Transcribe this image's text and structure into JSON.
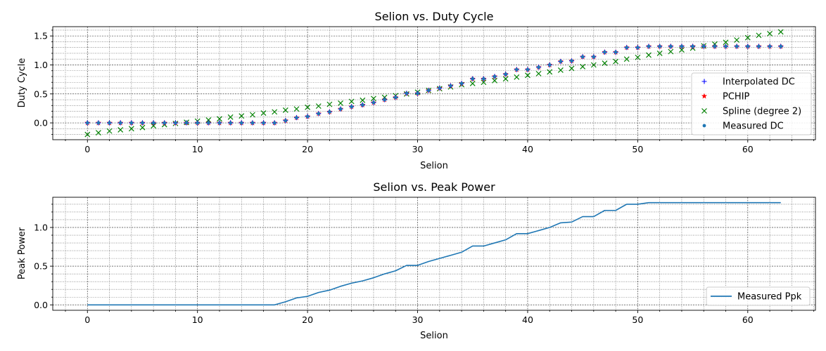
{
  "chart_data": [
    {
      "type": "scatter",
      "title": "Selion vs. Duty Cycle",
      "xlabel": "Selion",
      "ylabel": "Duty Cycle",
      "xlim": [
        -3.15,
        66.15
      ],
      "ylim": [
        -0.29,
        1.66
      ],
      "xticks": [
        0,
        10,
        20,
        30,
        40,
        50,
        60
      ],
      "xtick_labels": [
        "0",
        "10",
        "20",
        "30",
        "40",
        "50",
        "60"
      ],
      "yticks": [
        0.0,
        0.5,
        1.0,
        1.5
      ],
      "ytick_labels": [
        "0.0",
        "0.5",
        "1.0",
        "1.5"
      ],
      "grid": true,
      "minor_grid": true,
      "legend_position": "right",
      "x": [
        0,
        1,
        2,
        3,
        4,
        5,
        6,
        7,
        8,
        9,
        10,
        11,
        12,
        13,
        14,
        15,
        16,
        17,
        18,
        19,
        20,
        21,
        22,
        23,
        24,
        25,
        26,
        27,
        28,
        29,
        30,
        31,
        32,
        33,
        34,
        35,
        36,
        37,
        38,
        39,
        40,
        41,
        42,
        43,
        44,
        45,
        46,
        47,
        48,
        49,
        50,
        51,
        52,
        53,
        54,
        55,
        56,
        57,
        58,
        59,
        60,
        61,
        62,
        63
      ],
      "series": [
        {
          "name": "Interpolated DC",
          "marker": "plus",
          "color": "#0000ff",
          "values": [
            0,
            0,
            0,
            0,
            0,
            0,
            0,
            0,
            0,
            0,
            0,
            0,
            0,
            0,
            0,
            0,
            0,
            0,
            0.04,
            0.09,
            0.11,
            0.16,
            0.19,
            0.24,
            0.28,
            0.31,
            0.35,
            0.4,
            0.44,
            0.51,
            0.51,
            0.56,
            0.6,
            0.64,
            0.68,
            0.76,
            0.76,
            0.8,
            0.84,
            0.92,
            0.92,
            0.96,
            1.0,
            1.06,
            1.07,
            1.14,
            1.14,
            1.22,
            1.22,
            1.3,
            1.3,
            1.32,
            1.32,
            1.32,
            1.32,
            1.32,
            1.32,
            1.32,
            1.32,
            1.32,
            1.32,
            1.32,
            1.32,
            1.32
          ]
        },
        {
          "name": "PCHIP",
          "marker": "star",
          "color": "#ff0000",
          "values": [
            0,
            0,
            0,
            0,
            0,
            0,
            0,
            0,
            0,
            0,
            0,
            0,
            0,
            0,
            0,
            0,
            0,
            0,
            0.04,
            0.09,
            0.11,
            0.16,
            0.19,
            0.24,
            0.28,
            0.31,
            0.35,
            0.4,
            0.44,
            0.51,
            0.51,
            0.56,
            0.6,
            0.64,
            0.68,
            0.76,
            0.76,
            0.8,
            0.84,
            0.92,
            0.92,
            0.96,
            1.0,
            1.06,
            1.07,
            1.14,
            1.14,
            1.22,
            1.22,
            1.3,
            1.3,
            1.32,
            1.32,
            1.32,
            1.32,
            1.32,
            1.32,
            1.32,
            1.32,
            1.32,
            1.32,
            1.32,
            1.32,
            1.32
          ]
        },
        {
          "name": "Spline (degree 2)",
          "marker": "x",
          "color": "#008000",
          "values": [
            -0.2,
            -0.17,
            -0.14,
            -0.12,
            -0.1,
            -0.08,
            -0.05,
            -0.03,
            -0.01,
            0.01,
            0.03,
            0.05,
            0.07,
            0.1,
            0.12,
            0.14,
            0.17,
            0.19,
            0.22,
            0.24,
            0.27,
            0.29,
            0.32,
            0.34,
            0.37,
            0.39,
            0.42,
            0.44,
            0.47,
            0.5,
            0.53,
            0.56,
            0.59,
            0.62,
            0.66,
            0.68,
            0.7,
            0.73,
            0.76,
            0.79,
            0.82,
            0.85,
            0.88,
            0.91,
            0.94,
            0.97,
            1.0,
            1.03,
            1.06,
            1.1,
            1.13,
            1.17,
            1.2,
            1.23,
            1.26,
            1.29,
            1.33,
            1.36,
            1.39,
            1.43,
            1.47,
            1.51,
            1.54,
            1.57
          ]
        },
        {
          "name": "Measured DC",
          "marker": "dot",
          "color": "#1f77b4",
          "values": [
            0,
            0,
            0,
            0,
            0,
            0,
            0,
            0,
            0,
            0,
            0,
            0,
            0,
            0,
            0,
            0,
            0,
            0,
            0.04,
            0.09,
            0.11,
            0.16,
            0.19,
            0.24,
            0.28,
            0.31,
            0.35,
            0.4,
            0.44,
            0.51,
            0.51,
            0.56,
            0.6,
            0.64,
            0.68,
            0.76,
            0.76,
            0.8,
            0.84,
            0.92,
            0.92,
            0.96,
            1.0,
            1.06,
            1.07,
            1.14,
            1.14,
            1.22,
            1.22,
            1.3,
            1.3,
            1.32,
            1.32,
            1.32,
            1.32,
            1.32,
            1.32,
            1.32,
            1.32,
            1.32,
            1.32,
            1.32,
            1.32,
            1.32
          ]
        }
      ]
    },
    {
      "type": "line",
      "title": "Selion vs. Peak Power",
      "xlabel": "Selion",
      "ylabel": "Peak Power",
      "xlim": [
        -3.15,
        66.15
      ],
      "ylim": [
        -0.07,
        1.39
      ],
      "xticks": [
        0,
        10,
        20,
        30,
        40,
        50,
        60
      ],
      "xtick_labels": [
        "0",
        "10",
        "20",
        "30",
        "40",
        "50",
        "60"
      ],
      "yticks": [
        0.0,
        0.5,
        1.0
      ],
      "ytick_labels": [
        "0.0",
        "0.5",
        "1.0"
      ],
      "grid": true,
      "minor_grid": true,
      "legend_position": "lower right",
      "x": [
        0,
        1,
        2,
        3,
        4,
        5,
        6,
        7,
        8,
        9,
        10,
        11,
        12,
        13,
        14,
        15,
        16,
        17,
        18,
        19,
        20,
        21,
        22,
        23,
        24,
        25,
        26,
        27,
        28,
        29,
        30,
        31,
        32,
        33,
        34,
        35,
        36,
        37,
        38,
        39,
        40,
        41,
        42,
        43,
        44,
        45,
        46,
        47,
        48,
        49,
        50,
        51,
        52,
        53,
        54,
        55,
        56,
        57,
        58,
        59,
        60,
        61,
        62,
        63
      ],
      "series": [
        {
          "name": "Measured Ppk",
          "color": "#1f77b4",
          "values": [
            0,
            0,
            0,
            0,
            0,
            0,
            0,
            0,
            0,
            0,
            0,
            0,
            0,
            0,
            0,
            0,
            0,
            0,
            0.04,
            0.09,
            0.11,
            0.16,
            0.19,
            0.24,
            0.28,
            0.31,
            0.35,
            0.4,
            0.44,
            0.51,
            0.51,
            0.56,
            0.6,
            0.64,
            0.68,
            0.76,
            0.76,
            0.8,
            0.84,
            0.92,
            0.92,
            0.96,
            1.0,
            1.06,
            1.07,
            1.14,
            1.14,
            1.22,
            1.22,
            1.3,
            1.3,
            1.32,
            1.32,
            1.32,
            1.32,
            1.32,
            1.32,
            1.32,
            1.32,
            1.32,
            1.32,
            1.32,
            1.32,
            1.32
          ]
        }
      ]
    }
  ]
}
